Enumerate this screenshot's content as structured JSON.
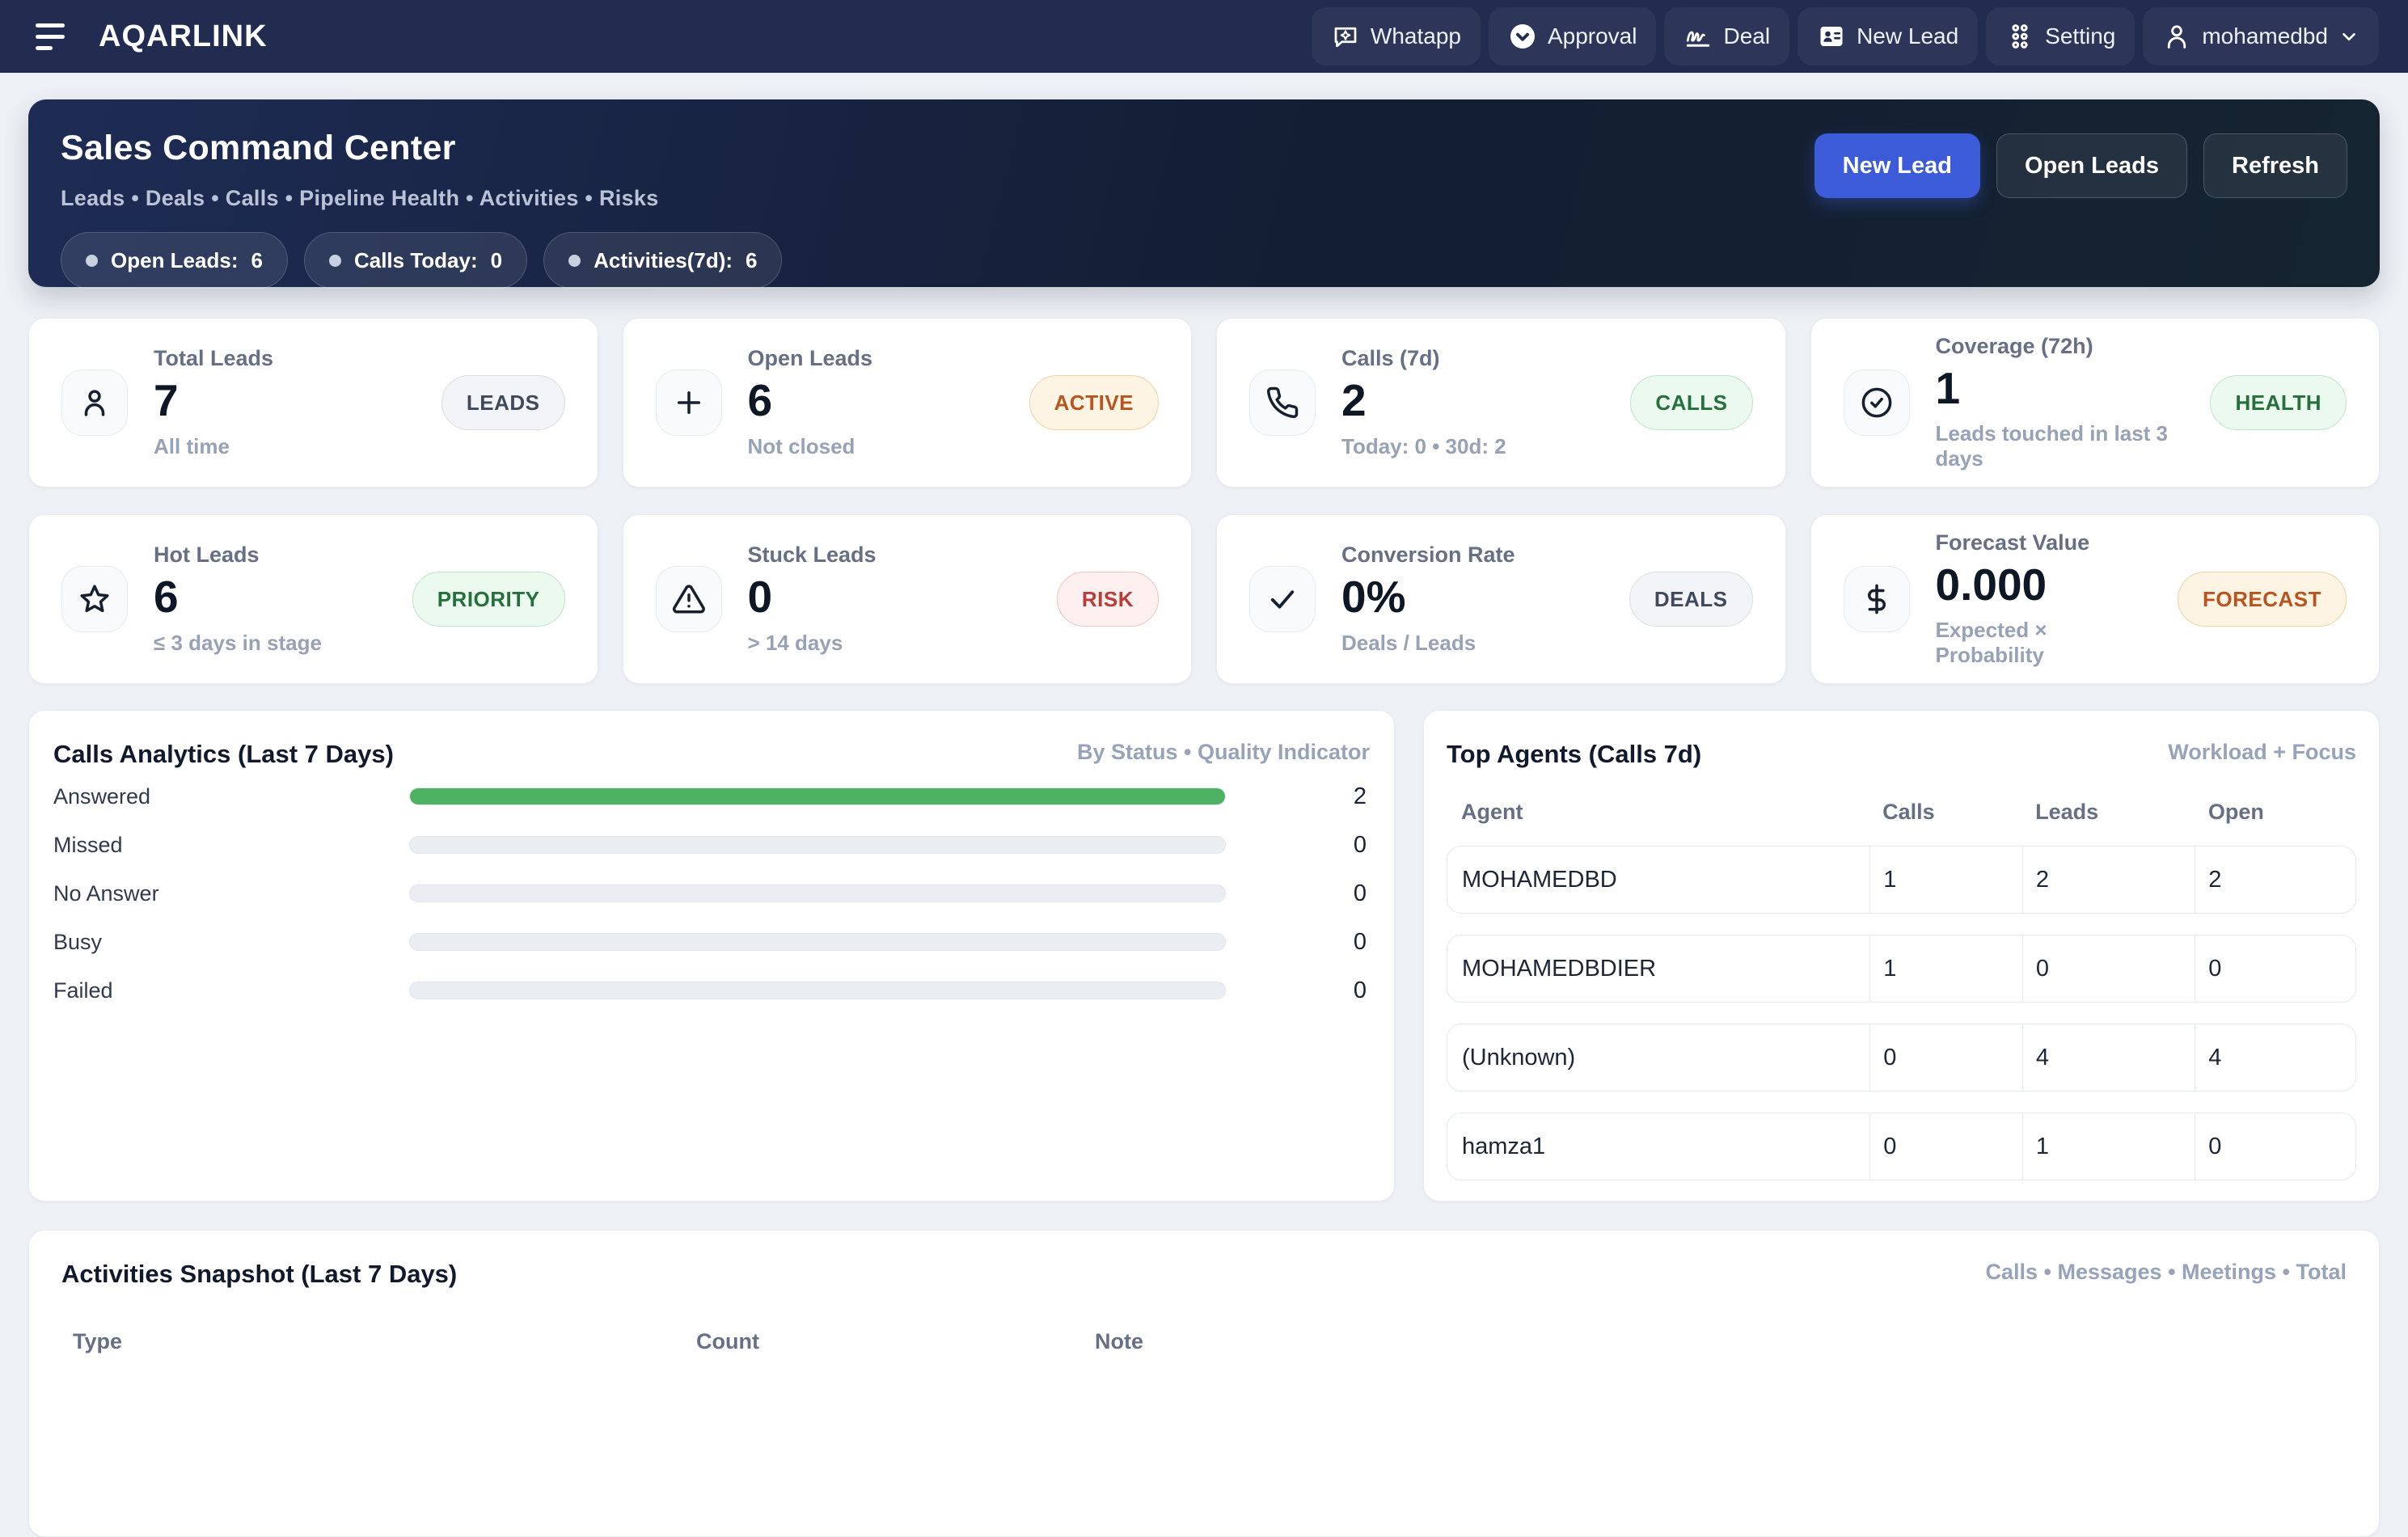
{
  "nav": {
    "brand": "AQARLINK",
    "items": [
      {
        "label": "Whatapp",
        "icon": "chat-sparkle-icon"
      },
      {
        "label": "Approval",
        "icon": "approval-badge-icon"
      },
      {
        "label": "Deal",
        "icon": "signature-icon"
      },
      {
        "label": "New Lead",
        "icon": "contact-card-icon"
      },
      {
        "label": "Setting",
        "icon": "dots-grid-icon"
      }
    ],
    "user": {
      "name": "mohamedbd",
      "icon": "user-icon"
    }
  },
  "hero": {
    "title": "Sales Command Center",
    "subtitle": "Leads • Deals • Calls • Pipeline Health • Activities • Risks",
    "chips": [
      {
        "label": "Open Leads:",
        "value": "6"
      },
      {
        "label": "Calls Today:",
        "value": "0"
      },
      {
        "label": "Activities(7d):",
        "value": "6"
      }
    ],
    "buttons": {
      "primary": "New Lead",
      "secondary": "Open Leads",
      "tertiary": "Refresh"
    }
  },
  "stat_cards": [
    {
      "icon": "person-icon",
      "label": "Total Leads",
      "value": "7",
      "sub": "All time",
      "badge": "LEADS",
      "badge_style": "gray"
    },
    {
      "icon": "plus-icon",
      "label": "Open Leads",
      "value": "6",
      "sub": "Not closed",
      "badge": "ACTIVE",
      "badge_style": "orange"
    },
    {
      "icon": "phone-icon",
      "label": "Calls (7d)",
      "value": "2",
      "sub": "Today: 0 • 30d: 2",
      "badge": "CALLS",
      "badge_style": "green"
    },
    {
      "icon": "check-circle-icon",
      "label": "Coverage (72h)",
      "value": "1",
      "sub": "Leads touched in last 3 days",
      "badge": "HEALTH",
      "badge_style": "green"
    },
    {
      "icon": "star-icon",
      "label": "Hot Leads",
      "value": "6",
      "sub": "≤ 3 days in stage",
      "badge": "PRIORITY",
      "badge_style": "green"
    },
    {
      "icon": "alert-triangle-icon",
      "label": "Stuck Leads",
      "value": "0",
      "sub": "> 14 days",
      "badge": "RISK",
      "badge_style": "red"
    },
    {
      "icon": "check-icon",
      "label": "Conversion Rate",
      "value": "0%",
      "sub": "Deals / Leads",
      "badge": "DEALS",
      "badge_style": "gray"
    },
    {
      "icon": "dollar-icon",
      "label": "Forecast Value",
      "value": "0.000",
      "sub": "Expected × Probability",
      "badge": "FORECAST",
      "badge_style": "orange"
    }
  ],
  "calls_analytics": {
    "title": "Calls Analytics (Last 7 Days)",
    "meta": "By Status • Quality Indicator",
    "rows": [
      {
        "label": "Answered",
        "value": "2",
        "pct": 100
      },
      {
        "label": "Missed",
        "value": "0",
        "pct": 0
      },
      {
        "label": "No Answer",
        "value": "0",
        "pct": 0
      },
      {
        "label": "Busy",
        "value": "0",
        "pct": 0
      },
      {
        "label": "Failed",
        "value": "0",
        "pct": 0
      }
    ]
  },
  "top_agents": {
    "title": "Top Agents (Calls 7d)",
    "meta": "Workload + Focus",
    "columns": [
      "Agent",
      "Calls",
      "Leads",
      "Open"
    ],
    "rows": [
      {
        "agent": "MOHAMEDBD",
        "calls": "1",
        "leads": "2",
        "open": "2"
      },
      {
        "agent": "MOHAMEDBDIER",
        "calls": "1",
        "leads": "0",
        "open": "0"
      },
      {
        "agent": "(Unknown)",
        "calls": "0",
        "leads": "4",
        "open": "4"
      },
      {
        "agent": "hamza1",
        "calls": "0",
        "leads": "1",
        "open": "0"
      }
    ]
  },
  "activities": {
    "title": "Activities Snapshot (Last 7 Days)",
    "meta": "Calls • Messages • Meetings • Total",
    "columns": [
      "Type",
      "Count",
      "Note"
    ]
  },
  "colors": {
    "nav_bg": "#222c50",
    "accent_blue": "#3c5bd8",
    "bar_green": "#4db363",
    "badge_green_text": "#25703c",
    "badge_orange_text": "#b9541f",
    "badge_red_text": "#b63d39"
  }
}
